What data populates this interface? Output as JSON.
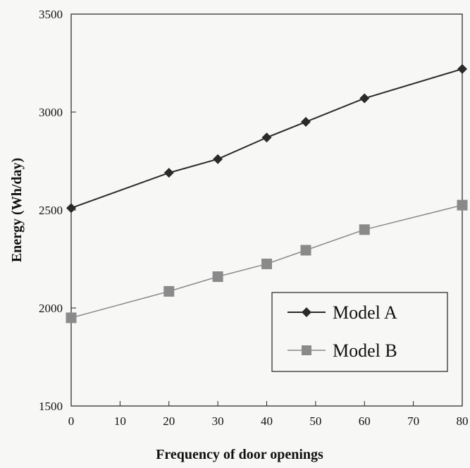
{
  "chart_data": {
    "type": "line",
    "title": "",
    "xlabel": "Frequency of door openings",
    "ylabel": "Energy (Wh/day)",
    "xlim": [
      0,
      80
    ],
    "ylim": [
      1500,
      3500
    ],
    "xticks": [
      0,
      10,
      20,
      30,
      40,
      50,
      60,
      70,
      80
    ],
    "yticks": [
      1500,
      2000,
      2500,
      3000,
      3500
    ],
    "grid": false,
    "legend_position": "lower-right",
    "series": [
      {
        "name": "Model A",
        "marker": "diamond",
        "color": "#2a2a2a",
        "x": [
          0,
          20,
          30,
          40,
          48,
          60,
          80
        ],
        "y": [
          2510,
          2690,
          2760,
          2870,
          2950,
          3070,
          3220
        ]
      },
      {
        "name": "Model B",
        "marker": "square",
        "color": "#8a8a8a",
        "x": [
          0,
          20,
          30,
          40,
          48,
          60,
          80
        ],
        "y": [
          1950,
          2085,
          2160,
          2225,
          2295,
          2400,
          2525
        ]
      }
    ]
  }
}
